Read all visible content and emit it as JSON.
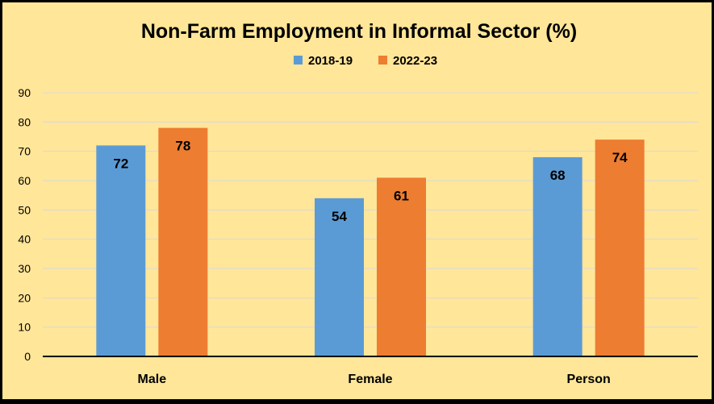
{
  "chart_data": {
    "type": "bar",
    "title": "Non-Farm Employment in Informal Sector (%)",
    "categories": [
      "Male",
      "Female",
      "Person"
    ],
    "series": [
      {
        "name": "2018-19",
        "values": [
          72,
          54,
          68
        ],
        "color": "#5B9BD5"
      },
      {
        "name": "2022-23",
        "values": [
          78,
          61,
          74
        ],
        "color": "#ED7D31"
      }
    ],
    "data_labels": true,
    "ylim": [
      0,
      90
    ],
    "yticks": [
      0,
      10,
      20,
      30,
      40,
      50,
      60,
      70,
      80,
      90
    ],
    "grid": true,
    "legend_position": "top-center",
    "background_color": "#FFE699"
  }
}
